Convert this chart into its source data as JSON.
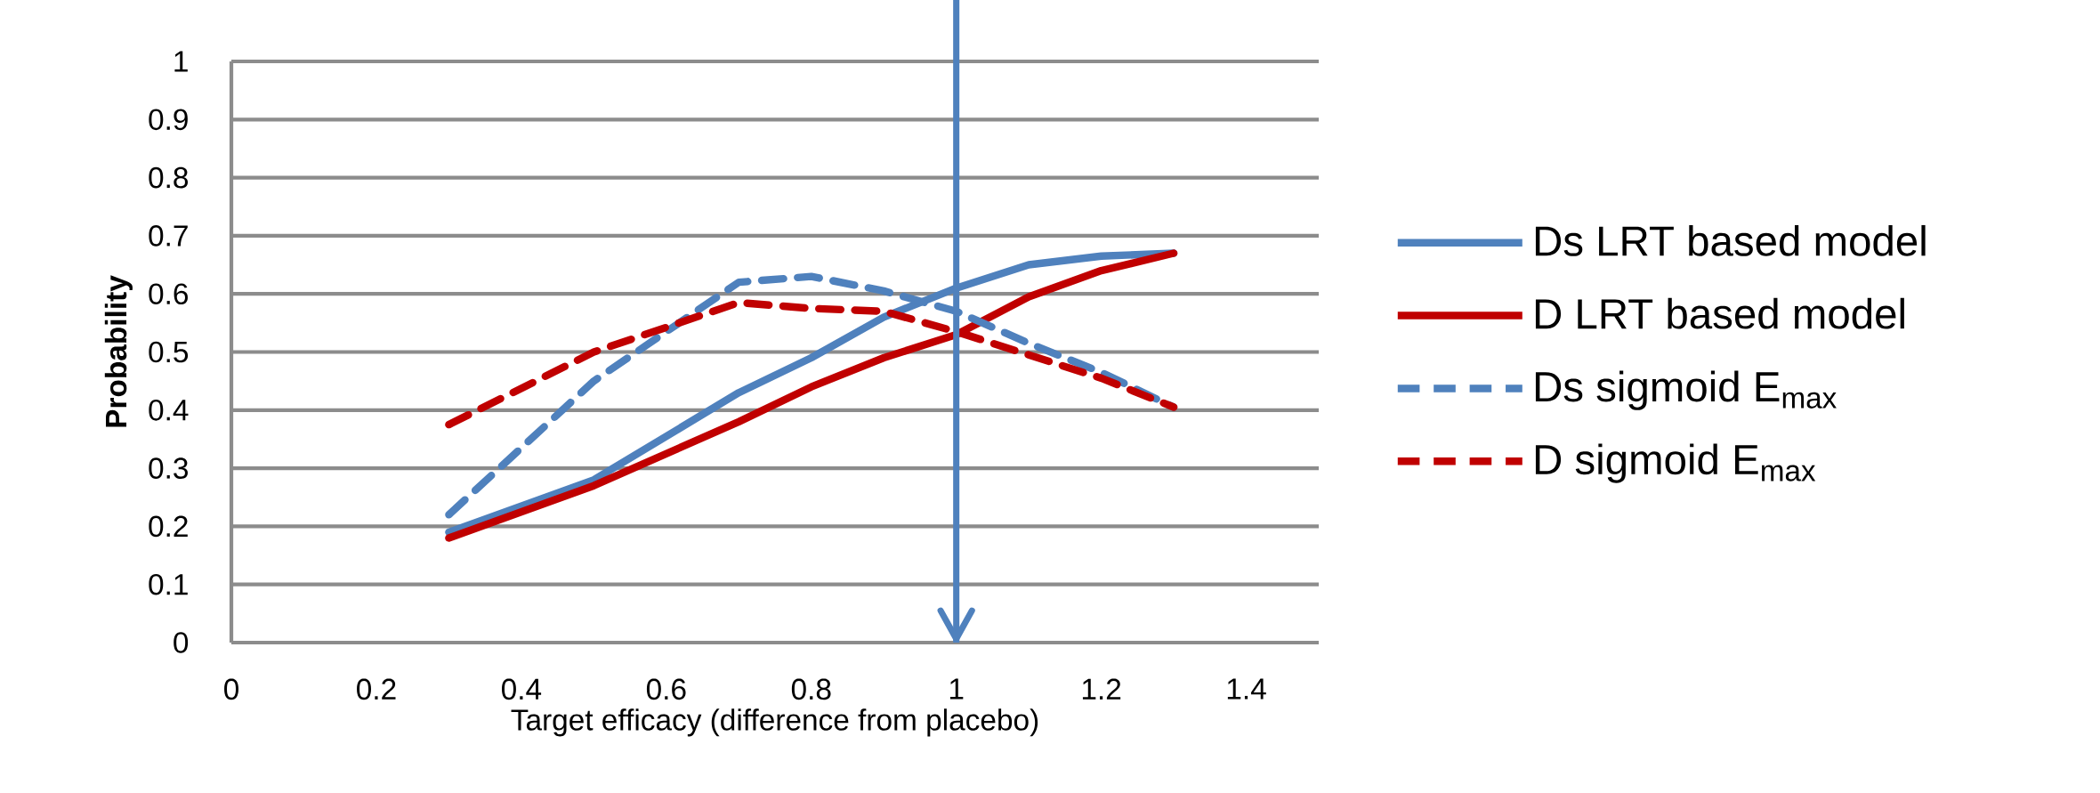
{
  "chart_data": {
    "type": "line",
    "xlabel": "Target efficacy (difference from placebo)",
    "ylabel": "**Probability**",
    "xlim": [
      0,
      1.5
    ],
    "xticks": [
      0,
      0.2,
      0.4,
      0.6,
      0.8,
      1,
      1.2,
      1.4
    ],
    "ylim": [
      0,
      1
    ],
    "yticks": [
      0,
      0.1,
      0.2,
      0.3,
      0.4,
      0.5,
      0.6,
      0.7,
      0.8,
      0.9,
      1
    ],
    "grid": "y",
    "legend": "right",
    "ref_lines": [
      {
        "axis": "x",
        "value": 1,
        "color": "#4f81bd"
      }
    ],
    "series": [
      {
        "name": "Ds LRT based model",
        "color": "#4f81bd",
        "line_style": "solid",
        "x": [
          0.3,
          0.5,
          0.7,
          0.8,
          0.9,
          1.0,
          1.1,
          1.2,
          1.3
        ],
        "values": [
          0.19,
          0.28,
          0.43,
          0.49,
          0.56,
          0.61,
          0.65,
          0.665,
          0.67
        ]
      },
      {
        "name": "D LRT based model",
        "color": "#c00000",
        "line_style": "solid",
        "x": [
          0.3,
          0.5,
          0.7,
          0.8,
          0.9,
          1.0,
          1.1,
          1.2,
          1.3
        ],
        "values": [
          0.18,
          0.27,
          0.38,
          0.44,
          0.49,
          0.53,
          0.595,
          0.64,
          0.67
        ]
      },
      {
        "name": "Ds sigmoid E$_{max}$",
        "color": "#4f81bd",
        "line_style": "dashed",
        "x": [
          0.3,
          0.5,
          0.7,
          0.8,
          0.9,
          1.0,
          1.1,
          1.2,
          1.3
        ],
        "values": [
          0.22,
          0.45,
          0.62,
          0.63,
          0.605,
          0.57,
          0.515,
          0.465,
          0.405
        ]
      },
      {
        "name": "D sigmoid E$_{max}$",
        "color": "#c00000",
        "line_style": "dashed",
        "x": [
          0.3,
          0.5,
          0.7,
          0.8,
          0.9,
          1.0,
          1.1,
          1.2,
          1.3
        ],
        "values": [
          0.375,
          0.5,
          0.585,
          0.575,
          0.57,
          0.535,
          0.495,
          0.455,
          0.405
        ]
      }
    ]
  }
}
